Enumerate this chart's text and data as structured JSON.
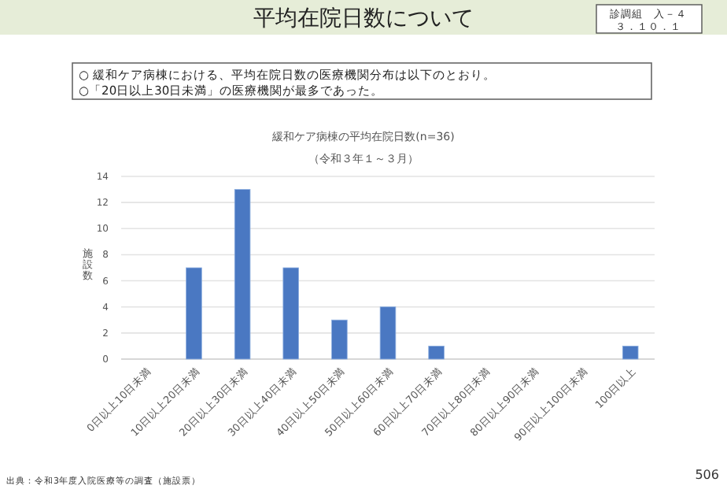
{
  "chart_data": {
    "type": "bar",
    "title": "緩和ケア病棟の平均在院日数(n=36)",
    "subtitle": "（令和３年１～３月）",
    "ylabel": "施設数",
    "annotations": [
      "平均在院日数について",
      "診調組　入－４",
      "３．１０．１",
      "○ 緩和ケア病棟における、平均在院日数の医療機関分布は以下のとおり。",
      "○「20日以上30日未満」の医療機関が最多であった。",
      "出典：令和3年度入院医療等の調査（施設票）",
      "506"
    ],
    "categories": [
      "0日以上10日未満",
      "10日以上20日未満",
      "20日以上30日未満",
      "30日以上40日未満",
      "40日以上50日未満",
      "50日以上60日未満",
      "60日以上70日未満",
      "70日以上80日未満",
      "80日以上90日未満",
      "90日以上100日未満",
      "100日以上"
    ],
    "values": [
      0,
      7,
      13,
      7,
      3,
      4,
      1,
      0,
      0,
      0,
      1
    ],
    "color": "#4a78c2",
    "ylim": [
      0,
      14
    ],
    "yticks": [
      0,
      2,
      4,
      6,
      8,
      10,
      12,
      14
    ],
    "grid": "y"
  }
}
